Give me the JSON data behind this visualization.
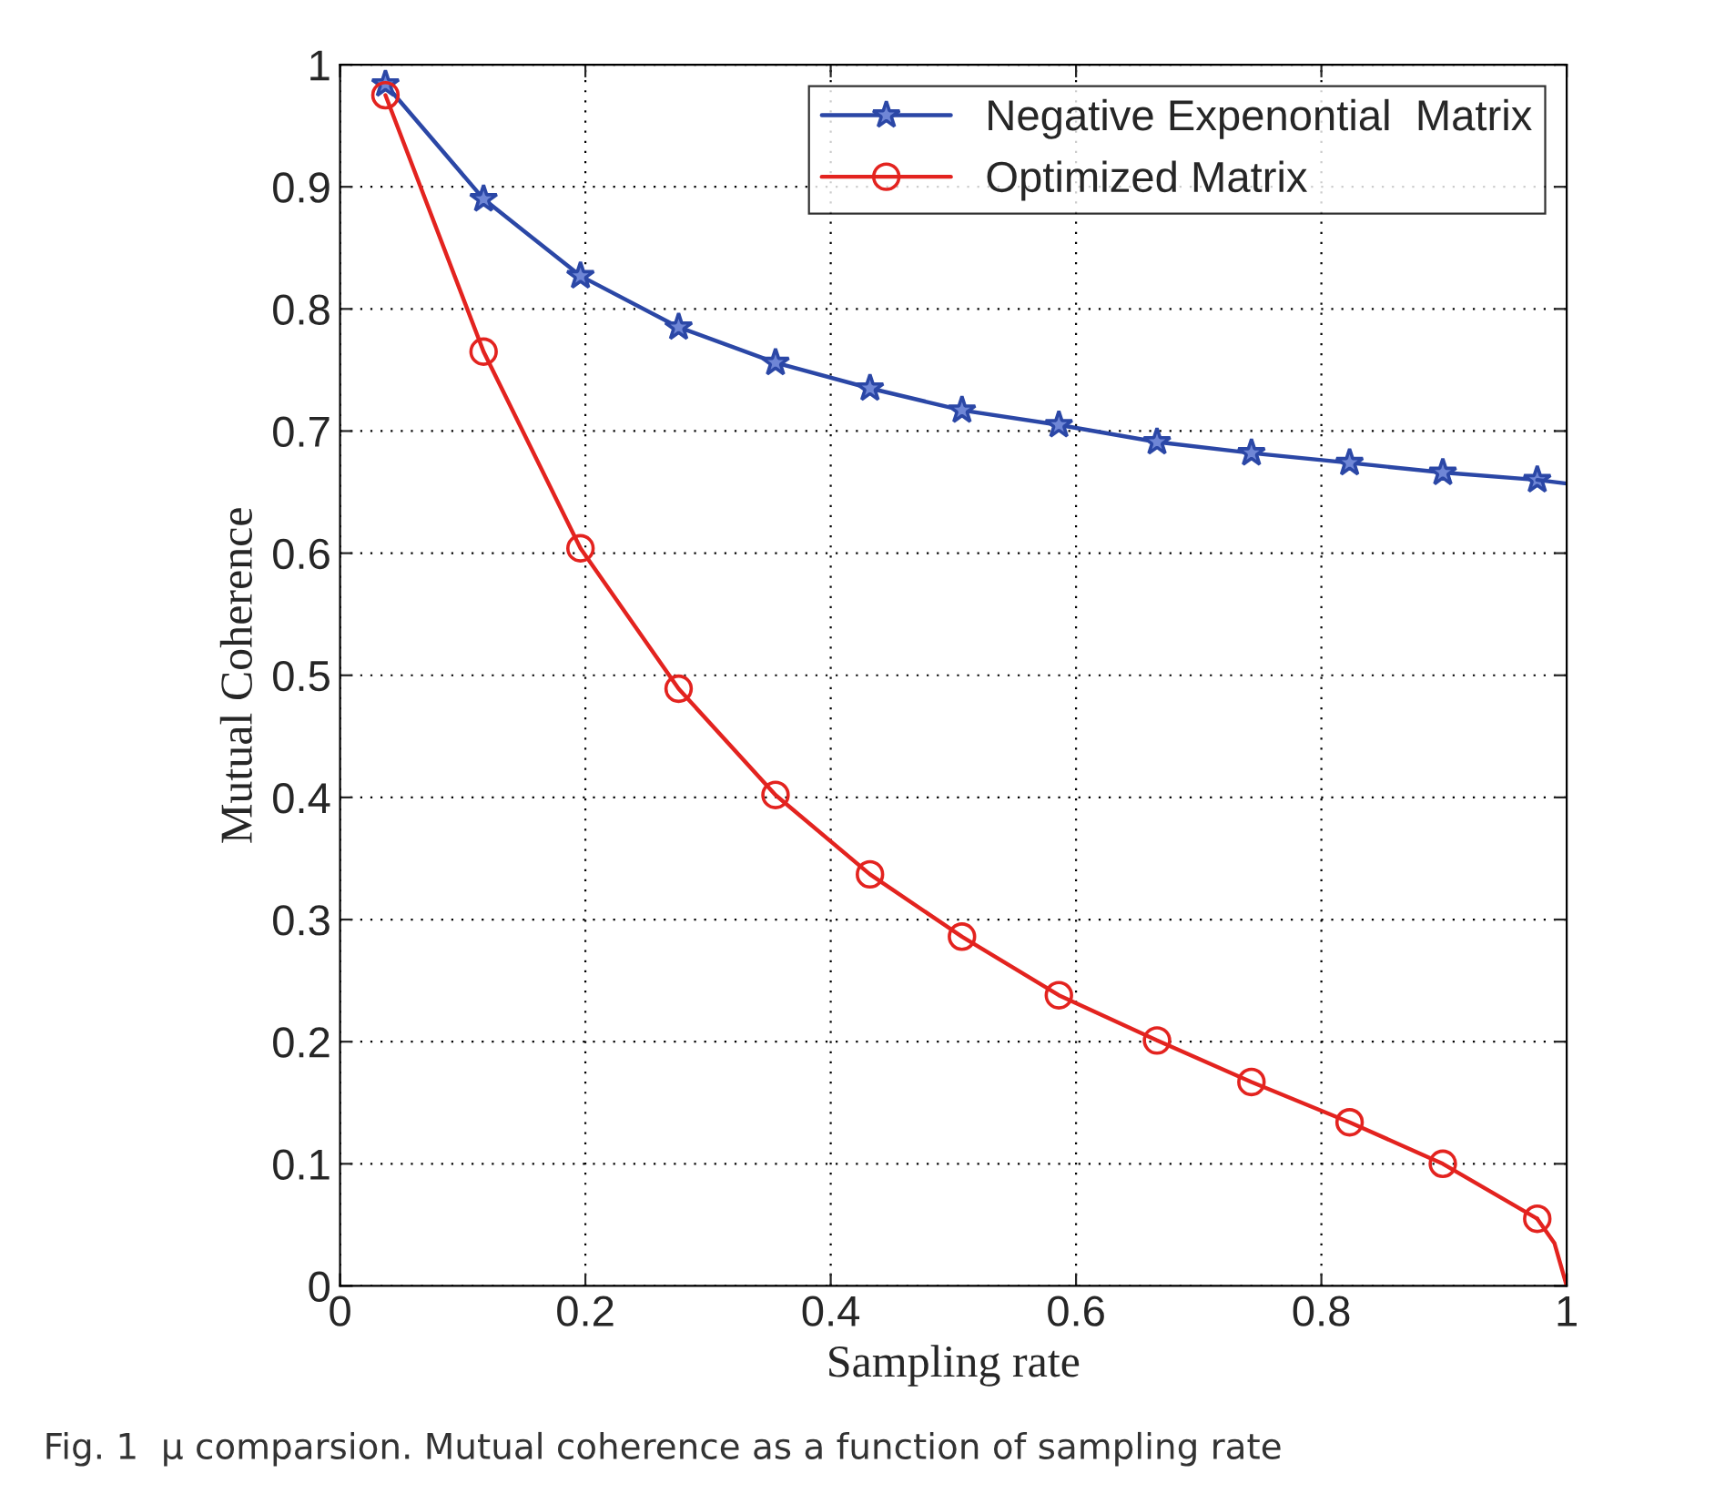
{
  "chart_data": {
    "type": "line",
    "xlabel": "Sampling rate",
    "ylabel": "Mutual Coherence",
    "xlim": [
      0,
      1
    ],
    "ylim": [
      0,
      1
    ],
    "xticks": [
      0,
      0.2,
      0.4,
      0.6,
      0.8,
      1
    ],
    "yticks": [
      0,
      0.1,
      0.2,
      0.3,
      0.4,
      0.5,
      0.6,
      0.7,
      0.8,
      0.9,
      1
    ],
    "grid": true,
    "legend": "top right",
    "annotations": [
      "Fig. 1  μ comparsion. Mutual coherence as a function of sampling rate"
    ],
    "series": [
      {
        "name": "Negative Expenontial  Matrix",
        "color": "#2b47a6",
        "marker": "star",
        "x": [
          0.037,
          0.117,
          0.196,
          0.276,
          0.355,
          0.432,
          0.507,
          0.586,
          0.666,
          0.743,
          0.823,
          0.899,
          0.976
        ],
        "values": [
          0.984,
          0.89,
          0.827,
          0.785,
          0.756,
          0.735,
          0.717,
          0.705,
          0.691,
          0.682,
          0.674,
          0.666,
          0.66
        ]
      },
      {
        "name": "Optimized Matrix",
        "color": "#e3231f",
        "marker": "circle",
        "x": [
          0.037,
          0.117,
          0.196,
          0.276,
          0.355,
          0.432,
          0.507,
          0.586,
          0.666,
          0.743,
          0.823,
          0.899,
          0.976
        ],
        "values": [
          0.975,
          0.765,
          0.604,
          0.489,
          0.402,
          0.337,
          0.286,
          0.238,
          0.201,
          0.167,
          0.134,
          0.1,
          0.055
        ]
      },
      {
        "color": "#2b47a6",
        "marker": "none",
        "x": [
          0.976,
          1
        ],
        "values": [
          0.66,
          0.657
        ]
      },
      {
        "color": "#e3231f",
        "marker": "none",
        "x": [
          0.976,
          0.99,
          1
        ],
        "values": [
          0.055,
          0.035,
          0
        ]
      }
    ]
  }
}
